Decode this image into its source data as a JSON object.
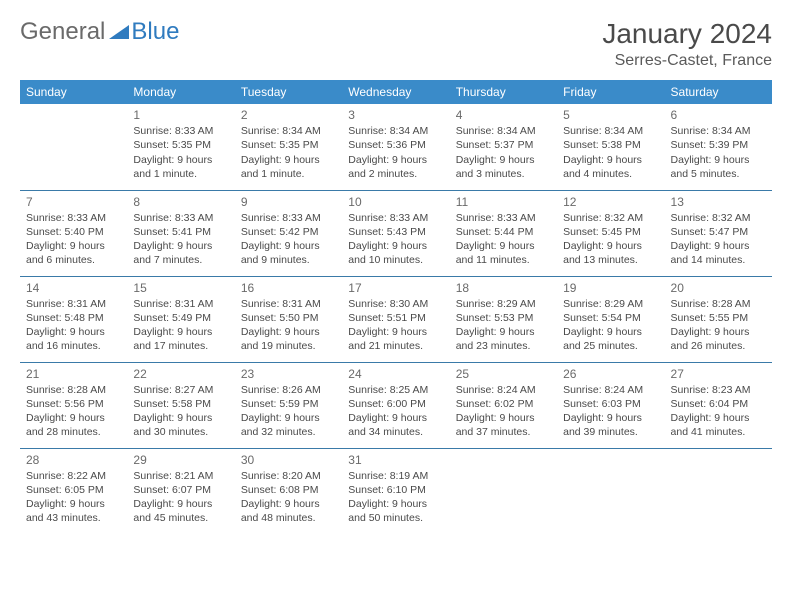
{
  "logo": {
    "general": "General",
    "blue": "Blue"
  },
  "header": {
    "title": "January 2024",
    "location": "Serres-Castet, France"
  },
  "colors": {
    "header_bg": "#3a8bc9",
    "header_text": "#ffffff",
    "row_border": "#3a7aa8",
    "body_text": "#4a4a4a",
    "logo_grey": "#6a6a6a",
    "logo_blue": "#2f7bbf"
  },
  "weekdays": [
    "Sunday",
    "Monday",
    "Tuesday",
    "Wednesday",
    "Thursday",
    "Friday",
    "Saturday"
  ],
  "weeks": [
    [
      null,
      {
        "n": "1",
        "sr": "Sunrise: 8:33 AM",
        "ss": "Sunset: 5:35 PM",
        "d1": "Daylight: 9 hours",
        "d2": "and 1 minute."
      },
      {
        "n": "2",
        "sr": "Sunrise: 8:34 AM",
        "ss": "Sunset: 5:35 PM",
        "d1": "Daylight: 9 hours",
        "d2": "and 1 minute."
      },
      {
        "n": "3",
        "sr": "Sunrise: 8:34 AM",
        "ss": "Sunset: 5:36 PM",
        "d1": "Daylight: 9 hours",
        "d2": "and 2 minutes."
      },
      {
        "n": "4",
        "sr": "Sunrise: 8:34 AM",
        "ss": "Sunset: 5:37 PM",
        "d1": "Daylight: 9 hours",
        "d2": "and 3 minutes."
      },
      {
        "n": "5",
        "sr": "Sunrise: 8:34 AM",
        "ss": "Sunset: 5:38 PM",
        "d1": "Daylight: 9 hours",
        "d2": "and 4 minutes."
      },
      {
        "n": "6",
        "sr": "Sunrise: 8:34 AM",
        "ss": "Sunset: 5:39 PM",
        "d1": "Daylight: 9 hours",
        "d2": "and 5 minutes."
      }
    ],
    [
      {
        "n": "7",
        "sr": "Sunrise: 8:33 AM",
        "ss": "Sunset: 5:40 PM",
        "d1": "Daylight: 9 hours",
        "d2": "and 6 minutes."
      },
      {
        "n": "8",
        "sr": "Sunrise: 8:33 AM",
        "ss": "Sunset: 5:41 PM",
        "d1": "Daylight: 9 hours",
        "d2": "and 7 minutes."
      },
      {
        "n": "9",
        "sr": "Sunrise: 8:33 AM",
        "ss": "Sunset: 5:42 PM",
        "d1": "Daylight: 9 hours",
        "d2": "and 9 minutes."
      },
      {
        "n": "10",
        "sr": "Sunrise: 8:33 AM",
        "ss": "Sunset: 5:43 PM",
        "d1": "Daylight: 9 hours",
        "d2": "and 10 minutes."
      },
      {
        "n": "11",
        "sr": "Sunrise: 8:33 AM",
        "ss": "Sunset: 5:44 PM",
        "d1": "Daylight: 9 hours",
        "d2": "and 11 minutes."
      },
      {
        "n": "12",
        "sr": "Sunrise: 8:32 AM",
        "ss": "Sunset: 5:45 PM",
        "d1": "Daylight: 9 hours",
        "d2": "and 13 minutes."
      },
      {
        "n": "13",
        "sr": "Sunrise: 8:32 AM",
        "ss": "Sunset: 5:47 PM",
        "d1": "Daylight: 9 hours",
        "d2": "and 14 minutes."
      }
    ],
    [
      {
        "n": "14",
        "sr": "Sunrise: 8:31 AM",
        "ss": "Sunset: 5:48 PM",
        "d1": "Daylight: 9 hours",
        "d2": "and 16 minutes."
      },
      {
        "n": "15",
        "sr": "Sunrise: 8:31 AM",
        "ss": "Sunset: 5:49 PM",
        "d1": "Daylight: 9 hours",
        "d2": "and 17 minutes."
      },
      {
        "n": "16",
        "sr": "Sunrise: 8:31 AM",
        "ss": "Sunset: 5:50 PM",
        "d1": "Daylight: 9 hours",
        "d2": "and 19 minutes."
      },
      {
        "n": "17",
        "sr": "Sunrise: 8:30 AM",
        "ss": "Sunset: 5:51 PM",
        "d1": "Daylight: 9 hours",
        "d2": "and 21 minutes."
      },
      {
        "n": "18",
        "sr": "Sunrise: 8:29 AM",
        "ss": "Sunset: 5:53 PM",
        "d1": "Daylight: 9 hours",
        "d2": "and 23 minutes."
      },
      {
        "n": "19",
        "sr": "Sunrise: 8:29 AM",
        "ss": "Sunset: 5:54 PM",
        "d1": "Daylight: 9 hours",
        "d2": "and 25 minutes."
      },
      {
        "n": "20",
        "sr": "Sunrise: 8:28 AM",
        "ss": "Sunset: 5:55 PM",
        "d1": "Daylight: 9 hours",
        "d2": "and 26 minutes."
      }
    ],
    [
      {
        "n": "21",
        "sr": "Sunrise: 8:28 AM",
        "ss": "Sunset: 5:56 PM",
        "d1": "Daylight: 9 hours",
        "d2": "and 28 minutes."
      },
      {
        "n": "22",
        "sr": "Sunrise: 8:27 AM",
        "ss": "Sunset: 5:58 PM",
        "d1": "Daylight: 9 hours",
        "d2": "and 30 minutes."
      },
      {
        "n": "23",
        "sr": "Sunrise: 8:26 AM",
        "ss": "Sunset: 5:59 PM",
        "d1": "Daylight: 9 hours",
        "d2": "and 32 minutes."
      },
      {
        "n": "24",
        "sr": "Sunrise: 8:25 AM",
        "ss": "Sunset: 6:00 PM",
        "d1": "Daylight: 9 hours",
        "d2": "and 34 minutes."
      },
      {
        "n": "25",
        "sr": "Sunrise: 8:24 AM",
        "ss": "Sunset: 6:02 PM",
        "d1": "Daylight: 9 hours",
        "d2": "and 37 minutes."
      },
      {
        "n": "26",
        "sr": "Sunrise: 8:24 AM",
        "ss": "Sunset: 6:03 PM",
        "d1": "Daylight: 9 hours",
        "d2": "and 39 minutes."
      },
      {
        "n": "27",
        "sr": "Sunrise: 8:23 AM",
        "ss": "Sunset: 6:04 PM",
        "d1": "Daylight: 9 hours",
        "d2": "and 41 minutes."
      }
    ],
    [
      {
        "n": "28",
        "sr": "Sunrise: 8:22 AM",
        "ss": "Sunset: 6:05 PM",
        "d1": "Daylight: 9 hours",
        "d2": "and 43 minutes."
      },
      {
        "n": "29",
        "sr": "Sunrise: 8:21 AM",
        "ss": "Sunset: 6:07 PM",
        "d1": "Daylight: 9 hours",
        "d2": "and 45 minutes."
      },
      {
        "n": "30",
        "sr": "Sunrise: 8:20 AM",
        "ss": "Sunset: 6:08 PM",
        "d1": "Daylight: 9 hours",
        "d2": "and 48 minutes."
      },
      {
        "n": "31",
        "sr": "Sunrise: 8:19 AM",
        "ss": "Sunset: 6:10 PM",
        "d1": "Daylight: 9 hours",
        "d2": "and 50 minutes."
      },
      null,
      null,
      null
    ]
  ]
}
